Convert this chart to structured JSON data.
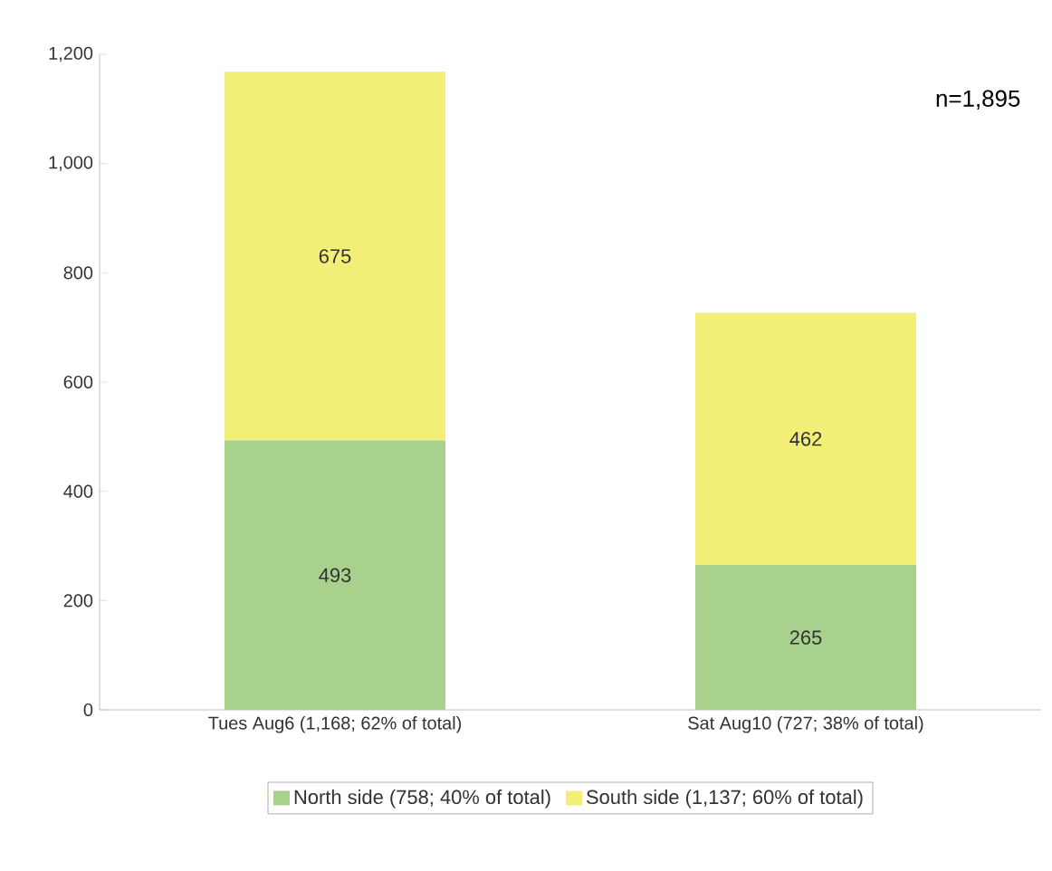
{
  "chart_data": {
    "type": "bar",
    "stacked": true,
    "categories": [
      "Tues Aug6 (1,168; 62% of total)",
      "Sat Aug10 (727; 38% of total)"
    ],
    "series": [
      {
        "name": "North side (758; 40% of total)",
        "color": "#a9d18e",
        "values": [
          493,
          265
        ]
      },
      {
        "name": "South side (1,137; 60% of total)",
        "color": "#f2ef78",
        "values": [
          675,
          462
        ]
      }
    ],
    "ylim": [
      0,
      1200
    ],
    "yticks": [
      0,
      200,
      400,
      600,
      800,
      {
        "value": 1000,
        "label": "1,000"
      },
      {
        "value": 1200,
        "label": "1,200"
      }
    ],
    "data_labels": true,
    "legend": "bottom",
    "annotations": [
      "n=1,895"
    ]
  }
}
